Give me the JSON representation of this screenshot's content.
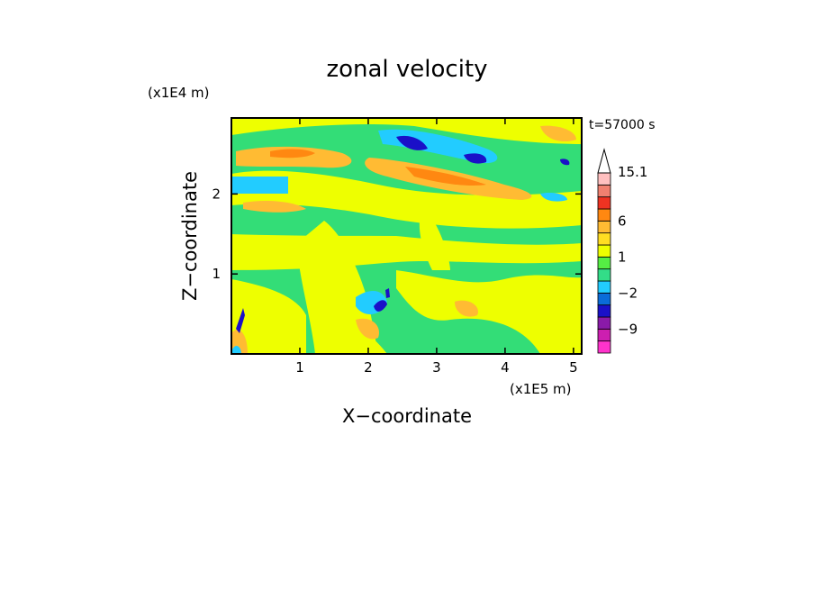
{
  "chart_data": {
    "type": "heatmap",
    "title": "zonal velocity",
    "xlabel": "X−coordinate",
    "ylabel": "Z−coordinate",
    "x_scale_label": "(x1E5 m)",
    "y_scale_label": "(x1E4 m)",
    "time_label": "t=57000 s",
    "xlim": [
      0,
      5.12
    ],
    "ylim": [
      0,
      2.95
    ],
    "x_ticks": [
      1,
      2,
      3,
      4,
      5
    ],
    "y_ticks": [
      1,
      2
    ],
    "colorbar": {
      "levels": [
        -15,
        -12,
        -9,
        -6,
        -3,
        -2,
        -1,
        0,
        1,
        2,
        3,
        6,
        9,
        12,
        15.1
      ],
      "colors": [
        "#ff33cc",
        "#cc1fb0",
        "#8a1aa8",
        "#1a10c8",
        "#0a6cd8",
        "#22ccff",
        "#33dd88",
        "#55ee44",
        "#eeff00",
        "#ffdd22",
        "#ffbb33",
        "#ff8811",
        "#ee3322",
        "#f08070",
        "#ffc0c0",
        "#ffffff"
      ],
      "labels": [
        {
          "value": 15.1,
          "text": "15.1"
        },
        {
          "value": 6,
          "text": "6"
        },
        {
          "value": 1,
          "text": "1"
        },
        {
          "value": -2,
          "text": "−2"
        },
        {
          "value": -9,
          "text": "−9"
        }
      ]
    },
    "grid": false,
    "legend": "right"
  }
}
